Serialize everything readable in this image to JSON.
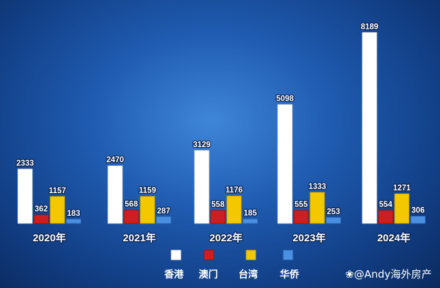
{
  "chart_data": {
    "type": "bar",
    "categories": [
      "2020年",
      "2021年",
      "2022年",
      "2023年",
      "2024年"
    ],
    "series": [
      {
        "name": "香港",
        "color": "#ffffff",
        "values": [
          2333,
          2470,
          3129,
          5098,
          8189
        ]
      },
      {
        "name": "澳门",
        "color": "#d01d1d",
        "values": [
          362,
          568,
          558,
          555,
          554
        ]
      },
      {
        "name": "台湾",
        "color": "#f3c800",
        "values": [
          1157,
          1159,
          1176,
          1333,
          1271
        ]
      },
      {
        "name": "华侨",
        "color": "#4a8fe0",
        "values": [
          183,
          287,
          185,
          253,
          306
        ]
      }
    ],
    "title": "",
    "xlabel": "",
    "ylabel": "",
    "ylim": [
      0,
      8800
    ],
    "grid": false,
    "legend_placement": "bottom"
  },
  "watermark": {
    "icon": "paw-icon",
    "text": "@Andy海外房产"
  }
}
